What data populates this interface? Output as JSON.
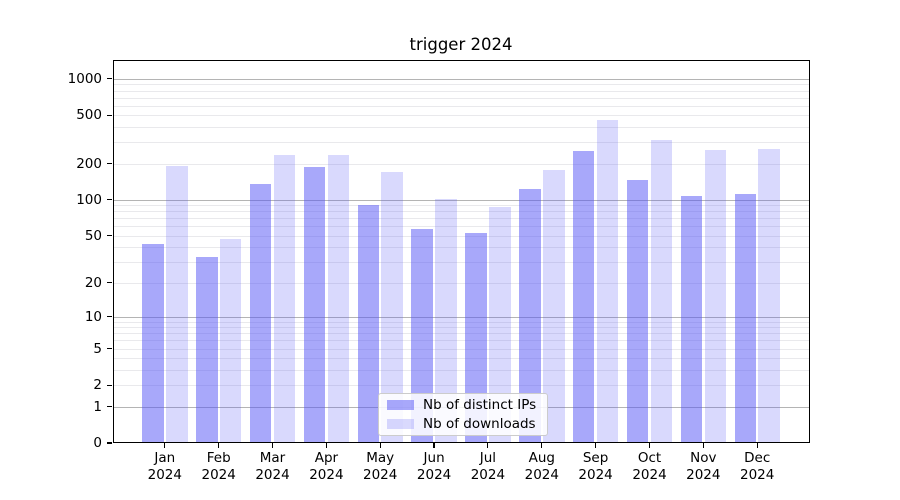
{
  "chart_data": {
    "type": "bar",
    "title": "trigger 2024",
    "categories": [
      "Jan",
      "Feb",
      "Mar",
      "Apr",
      "May",
      "Jun",
      "Jul",
      "Aug",
      "Sep",
      "Oct",
      "Nov",
      "Dec"
    ],
    "year_label": "2024",
    "series": [
      {
        "name": "Nb of distinct IPs",
        "values": [
          43,
          33,
          134,
          186,
          91,
          57,
          53,
          124,
          256,
          145,
          108,
          111
        ]
      },
      {
        "name": "Nb of downloads",
        "values": [
          192,
          47,
          237,
          237,
          169,
          102,
          87,
          178,
          462,
          312,
          260,
          266
        ]
      }
    ],
    "xlabel": "",
    "ylabel": "",
    "y_scale": "log10(value+1)",
    "ylim": [
      0,
      1430
    ],
    "yticks": [
      0,
      1,
      2,
      5,
      10,
      20,
      50,
      100,
      200,
      500,
      1000
    ],
    "grid": true,
    "grid_major_at": [
      1,
      10,
      100,
      1000
    ],
    "grid_minor_at": [
      2,
      3,
      4,
      5,
      6,
      7,
      8,
      9,
      20,
      30,
      40,
      50,
      60,
      70,
      80,
      90,
      200,
      300,
      400,
      500,
      600,
      700,
      800,
      900
    ],
    "legend_position": "lower center"
  },
  "colors": {
    "bar_distinct_ips": "#a8a8f8",
    "bar_downloads": "#d9d9f8",
    "grid_major": "#b4b4b4",
    "grid_minor": "#e9e9ec",
    "axis": "#000000",
    "legend_border": "#cccccc"
  }
}
